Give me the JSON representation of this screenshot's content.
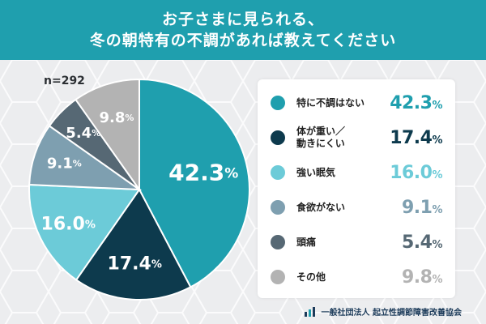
{
  "header": {
    "line1": "お子さまに見られる、",
    "line2": "冬の朝特有の不調があれば教えてください"
  },
  "sample_label": "n=292",
  "colors": {
    "header_bg": "#1f9fae",
    "slices": [
      "#1f9fae",
      "#0d3a4d",
      "#6ccbd8",
      "#7e9fb0",
      "#566874",
      "#b3b3b3"
    ]
  },
  "chart_data": {
    "type": "pie",
    "categories": [
      "特に不調はない",
      "体が重い／\n動きにくい",
      "強い眠気",
      "食欲がない",
      "頭痛",
      "その他"
    ],
    "values": [
      42.3,
      17.4,
      16.0,
      9.1,
      5.4,
      9.8
    ],
    "value_labels": [
      "42.3",
      "17.4",
      "16.0",
      "9.1",
      "5.4",
      "9.8"
    ],
    "unit": "%",
    "legend": "right"
  },
  "footer": {
    "org": "一般社団法人 起立性調節障害改善協会"
  }
}
